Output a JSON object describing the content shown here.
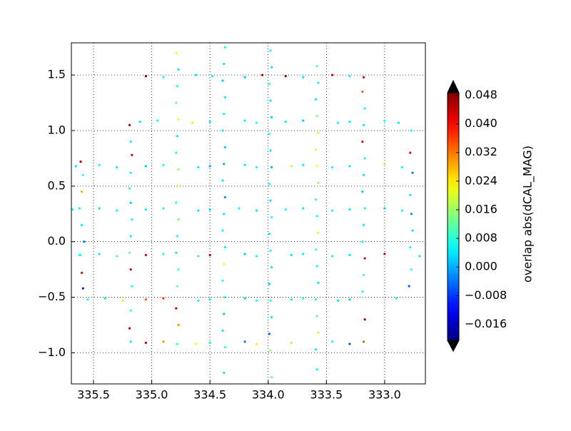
{
  "chart_data": {
    "type": "scatter",
    "xlim": [
      335.69,
      332.65
    ],
    "ylim": [
      -1.28,
      1.79
    ],
    "xticks": [
      335.5,
      {
        "value": 335.0,
        "label": "335.0"
      },
      334.5,
      {
        "value": 334.0,
        "label": "334.0"
      },
      333.5,
      {
        "value": 333.0,
        "label": "333.0"
      }
    ],
    "yticks": [
      {
        "value": -1.0,
        "label": "−1.0"
      },
      {
        "value": -0.5,
        "label": "−0.5"
      },
      {
        "value": 0.0,
        "label": "0.0"
      },
      0.5,
      {
        "value": 1.0,
        "label": "1.0"
      },
      1.5
    ],
    "grid": true,
    "colormap": "jet",
    "clim": [
      -0.0205,
      0.0487
    ],
    "cticks": [
      {
        "value": -0.016,
        "label": "−0.016"
      },
      {
        "value": -0.008,
        "label": "−0.008"
      },
      {
        "value": 0.0,
        "label": "0.000"
      },
      0.008,
      0.016,
      0.024,
      0.032,
      {
        "value": 0.04,
        "label": "0.040"
      },
      0.048
    ],
    "colorbar_label": "overlap abs(dCAL_MAG)",
    "x": [
      335.61,
      335.59,
      335.6,
      335.62,
      335.6,
      335.58,
      335.61,
      335.6,
      335.59,
      335.19,
      335.18,
      335.17,
      335.18,
      335.19,
      335.18,
      335.17,
      335.18,
      335.19,
      335.18,
      335.17,
      335.18,
      335.19,
      335.18,
      334.79,
      334.77,
      334.78,
      334.79,
      334.77,
      334.78,
      334.79,
      334.77,
      334.78,
      334.79,
      334.77,
      334.78,
      334.79,
      334.77,
      334.78,
      334.79,
      334.77,
      334.78,
      334.37,
      334.38,
      334.39,
      334.37,
      334.38,
      334.39,
      334.37,
      334.38,
      334.39,
      334.37,
      334.38,
      334.39,
      334.37,
      334.38,
      334.39,
      334.37,
      334.38,
      334.39,
      334.37,
      334.38,
      333.98,
      333.97,
      333.99,
      333.98,
      333.97,
      333.99,
      333.98,
      333.97,
      333.99,
      333.98,
      333.97,
      333.99,
      333.98,
      333.97,
      333.99,
      333.98,
      333.97,
      333.99,
      333.98,
      333.97,
      333.58,
      333.57,
      333.59,
      333.58,
      333.57,
      333.59,
      333.58,
      333.57,
      333.59,
      333.58,
      333.57,
      333.59,
      333.58,
      333.57,
      333.59,
      333.58,
      333.57,
      333.59,
      333.58,
      333.18,
      333.19,
      333.17,
      333.18,
      333.19,
      333.17,
      333.18,
      333.19,
      333.17,
      333.18,
      333.19,
      333.17,
      333.18,
      333.19,
      333.17,
      333.18,
      332.77,
      332.78,
      332.76,
      332.78,
      332.77,
      332.76,
      332.78,
      332.77,
      332.79,
      335.05,
      334.9,
      334.62,
      334.48,
      334.2,
      334.05,
      333.85,
      333.7,
      333.45,
      333.3,
      335.1,
      334.95,
      334.65,
      334.5,
      334.2,
      334.1,
      333.85,
      333.7,
      333.4,
      333.3,
      333.0,
      332.88,
      335.65,
      335.45,
      335.3,
      335.05,
      334.9,
      334.6,
      334.5,
      334.2,
      334.1,
      333.8,
      333.7,
      333.45,
      333.3,
      333.0,
      332.85,
      335.68,
      335.45,
      335.3,
      335.05,
      334.9,
      334.6,
      334.5,
      334.25,
      334.1,
      333.85,
      333.7,
      333.45,
      333.3,
      333.0,
      332.85,
      335.62,
      335.45,
      335.3,
      335.05,
      334.9,
      334.6,
      334.5,
      334.2,
      334.1,
      333.8,
      333.7,
      333.45,
      333.3,
      333.0,
      332.7,
      335.55,
      335.4,
      335.25,
      335.05,
      334.9,
      334.6,
      334.5,
      334.2,
      334.1,
      333.8,
      333.7,
      333.4,
      333.3,
      332.9,
      335.05,
      334.9,
      334.62,
      334.5,
      334.2,
      334.1,
      333.8,
      333.45,
      333.3
    ],
    "y": [
      0.72,
      0.6,
      0.45,
      0.3,
      0.15,
      0.0,
      -0.12,
      -0.28,
      -0.42,
      1.05,
      0.9,
      0.78,
      0.62,
      0.48,
      0.35,
      0.2,
      0.05,
      -0.1,
      -0.25,
      -0.4,
      -0.62,
      -0.78,
      -0.9,
      1.7,
      1.55,
      1.4,
      1.25,
      1.1,
      0.95,
      0.8,
      0.65,
      0.5,
      0.35,
      0.2,
      0.05,
      -0.1,
      -0.25,
      -0.4,
      -0.6,
      -0.75,
      -0.92,
      1.75,
      1.6,
      1.45,
      1.3,
      1.15,
      1.0,
      0.85,
      0.7,
      0.55,
      0.4,
      0.25,
      0.1,
      -0.05,
      -0.2,
      -0.35,
      -0.5,
      -0.65,
      -0.8,
      -0.95,
      -1.18,
      1.72,
      1.57,
      1.42,
      1.27,
      1.12,
      0.97,
      0.82,
      0.67,
      0.52,
      0.37,
      0.22,
      0.07,
      -0.08,
      -0.23,
      -0.38,
      -0.53,
      -0.68,
      -0.83,
      -0.98,
      -1.22,
      1.58,
      1.43,
      1.28,
      1.13,
      0.98,
      0.83,
      0.68,
      0.53,
      0.38,
      0.23,
      0.08,
      -0.07,
      -0.22,
      -0.37,
      -0.52,
      -0.67,
      -0.82,
      -0.97,
      -1.15,
      1.48,
      1.35,
      1.2,
      1.05,
      0.9,
      0.75,
      0.6,
      0.45,
      0.3,
      0.15,
      0.0,
      -0.15,
      -0.3,
      -0.45,
      -0.7,
      -0.9,
      1.0,
      0.8,
      0.62,
      0.42,
      0.25,
      0.1,
      -0.05,
      -0.25,
      -0.4,
      1.49,
      1.48,
      1.5,
      1.49,
      1.48,
      1.5,
      1.49,
      1.48,
      1.5,
      1.49,
      1.08,
      1.09,
      1.07,
      1.08,
      1.09,
      1.07,
      1.08,
      1.09,
      1.07,
      1.08,
      1.09,
      1.07,
      0.68,
      0.69,
      0.67,
      0.68,
      0.69,
      0.67,
      0.68,
      0.69,
      0.67,
      0.68,
      0.69,
      0.67,
      0.68,
      0.69,
      0.67,
      0.29,
      0.3,
      0.28,
      0.29,
      0.3,
      0.28,
      0.29,
      0.3,
      0.28,
      0.29,
      0.3,
      0.28,
      0.29,
      0.3,
      0.28,
      -0.12,
      -0.11,
      -0.13,
      -0.12,
      -0.11,
      -0.13,
      -0.12,
      -0.11,
      -0.13,
      -0.12,
      -0.11,
      -0.13,
      -0.12,
      -0.11,
      -0.13,
      -0.52,
      -0.51,
      -0.53,
      -0.52,
      -0.51,
      -0.53,
      -0.52,
      -0.51,
      -0.53,
      -0.52,
      -0.51,
      -0.53,
      -0.52,
      -0.51,
      -0.91,
      -0.9,
      -0.92,
      -0.91,
      -0.9,
      -0.92,
      -0.91,
      -0.9,
      -0.92
    ],
    "values": [
      0.046,
      0.01,
      0.028,
      0.006,
      0.004,
      -0.004,
      0.008,
      0.044,
      -0.01,
      0.046,
      0.004,
      0.044,
      0.006,
      0.008,
      0.002,
      0.006,
      0.004,
      0.012,
      0.044,
      0.006,
      0.008,
      0.044,
      0.004,
      0.022,
      0.004,
      0.006,
      0.012,
      0.02,
      0.004,
      0.006,
      0.016,
      0.018,
      0.008,
      0.014,
      0.006,
      0.004,
      0.01,
      0.012,
      0.044,
      0.03,
      0.008,
      0.006,
      0.004,
      0.002,
      0.004,
      0.006,
      0.004,
      0.002,
      0.0,
      0.004,
      -0.002,
      0.004,
      0.006,
      0.004,
      0.022,
      0.006,
      0.004,
      0.002,
      0.004,
      0.008,
      0.004,
      0.006,
      0.004,
      0.008,
      0.004,
      0.002,
      0.006,
      0.004,
      0.0,
      0.006,
      0.004,
      0.008,
      0.004,
      0.006,
      0.004,
      0.002,
      0.006,
      0.004,
      -0.006,
      0.016,
      0.014,
      0.012,
      0.006,
      0.004,
      0.014,
      0.018,
      0.02,
      0.022,
      0.016,
      0.01,
      0.006,
      0.02,
      0.008,
      0.006,
      0.004,
      0.006,
      0.012,
      0.02,
      0.004,
      0.006,
      0.044,
      0.034,
      0.006,
      0.004,
      0.04,
      0.006,
      0.004,
      0.002,
      0.006,
      0.004,
      0.006,
      0.044,
      0.008,
      0.006,
      0.046,
      0.034,
      0.006,
      0.04,
      -0.004,
      0.004,
      -0.002,
      0.004,
      0.006,
      0.008,
      -0.006,
      0.048,
      0.006,
      0.004,
      0.006,
      0.002,
      0.046,
      0.048,
      0.004,
      0.044,
      0.006,
      0.004,
      0.006,
      0.024,
      0.006,
      0.004,
      0.006,
      0.004,
      0.002,
      0.006,
      0.004,
      0.006,
      0.004,
      0.004,
      0.006,
      0.004,
      0.002,
      0.006,
      0.004,
      0.0,
      0.004,
      0.006,
      0.018,
      0.004,
      0.006,
      0.004,
      0.02,
      0.006,
      0.006,
      0.004,
      0.006,
      0.004,
      0.006,
      0.004,
      0.002,
      0.006,
      0.004,
      0.006,
      0.004,
      0.006,
      0.004,
      0.002,
      0.006,
      0.006,
      0.004,
      0.01,
      0.044,
      0.006,
      0.008,
      0.046,
      0.002,
      0.006,
      0.004,
      0.004,
      0.006,
      0.004,
      0.044,
      0.004,
      0.006,
      0.004,
      0.02,
      0.034,
      0.036,
      0.006,
      0.004,
      0.002,
      0.006,
      0.004,
      0.006,
      0.004,
      0.002,
      0.006,
      0.044,
      0.03,
      0.022,
      0.006,
      -0.004,
      0.024,
      0.018,
      0.006,
      -0.006
    ]
  }
}
